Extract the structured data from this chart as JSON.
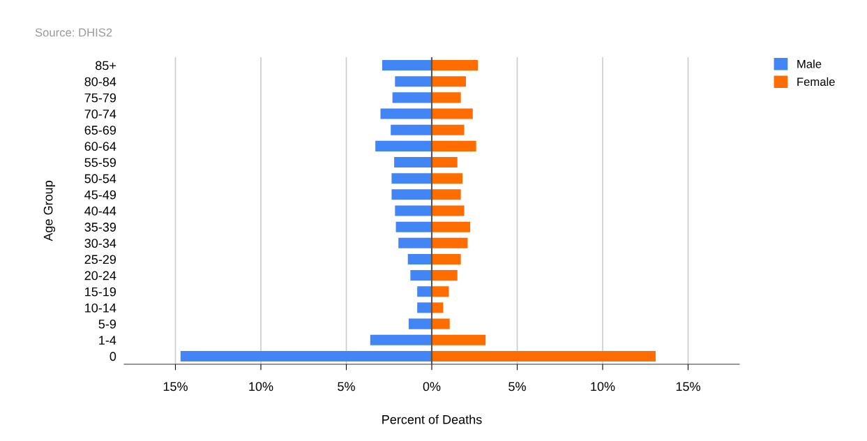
{
  "chart_data": {
    "type": "bar",
    "orientation": "horizontal",
    "stacked": true,
    "annotations": [
      "Source: DHIS2"
    ],
    "xlabel": "Percent of Deaths",
    "ylabel": "Age Group",
    "categories": [
      "85+",
      "80-84",
      "75-79",
      "70-74",
      "65-69",
      "60-64",
      "55-59",
      "50-54",
      "45-49",
      "40-44",
      "35-39",
      "30-34",
      "25-29",
      "20-24",
      "15-19",
      "10-14",
      "5-9",
      "1-4",
      "0"
    ],
    "series": [
      {
        "name": "Male",
        "color": "#4285f4",
        "values": [
          -2.9,
          -2.15,
          -2.3,
          -3.0,
          -2.4,
          -3.3,
          -2.2,
          -2.35,
          -2.35,
          -2.15,
          -2.1,
          -1.95,
          -1.4,
          -1.25,
          -0.85,
          -0.85,
          -1.35,
          -3.6,
          -14.7
        ]
      },
      {
        "name": "Female",
        "color": "#ff6d00",
        "values": [
          2.7,
          2.0,
          1.7,
          2.4,
          1.9,
          2.6,
          1.5,
          1.8,
          1.7,
          1.9,
          2.25,
          2.1,
          1.7,
          1.5,
          1.0,
          0.67,
          1.05,
          3.15,
          13.1
        ]
      }
    ],
    "xlim": [
      -18,
      18
    ],
    "xticks": [
      {
        "value": -15,
        "label": "15%"
      },
      {
        "value": -10,
        "label": "10%"
      },
      {
        "value": -5,
        "label": "5%"
      },
      {
        "value": 0,
        "label": "0%"
      },
      {
        "value": 5,
        "label": "5%"
      },
      {
        "value": 10,
        "label": "10%"
      },
      {
        "value": 15,
        "label": "15%"
      }
    ],
    "grid": "x",
    "legend": "top right"
  }
}
